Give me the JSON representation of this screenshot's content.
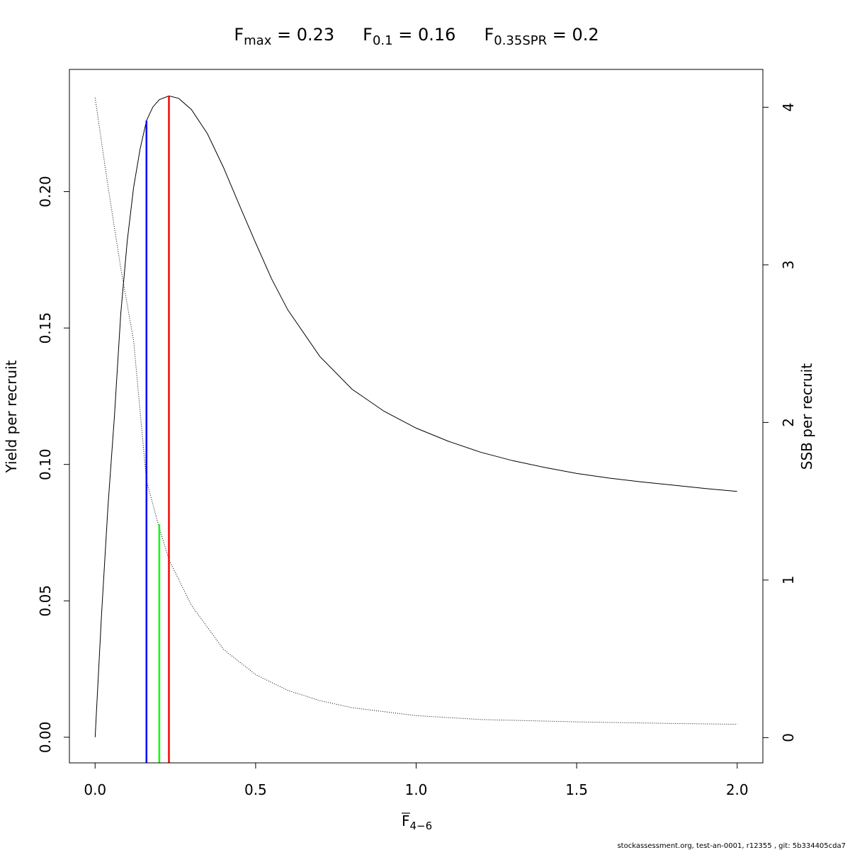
{
  "chart_data": {
    "type": "line",
    "title_parts": [
      {
        "main": "F",
        "sub": "max",
        "rest": " = 0.23"
      },
      {
        "main": "F",
        "sub": "0.1",
        "rest": " = 0.16"
      },
      {
        "main": "F",
        "sub": "0.35SPR",
        "rest": " = 0.2"
      }
    ],
    "xlabel": {
      "main": "F",
      "sub": "4−6"
    },
    "ylabel": "Yield per recruit",
    "ylabel_right": "SSB per recruit",
    "xlim": [
      -0.08,
      2.08
    ],
    "ylim": [
      -0.0094,
      0.2448
    ],
    "ylim_right": [
      -0.16,
      4.24
    ],
    "x_ticks": [
      0.0,
      0.5,
      1.0,
      1.5,
      2.0
    ],
    "x_tick_labels": [
      "0.0",
      "0.5",
      "1.0",
      "1.5",
      "2.0"
    ],
    "y_ticks": [
      0.0,
      0.05,
      0.1,
      0.15,
      0.2
    ],
    "y_tick_labels": [
      "0.00",
      "0.05",
      "0.10",
      "0.15",
      "0.20"
    ],
    "y2_ticks": [
      0,
      1,
      2,
      3,
      4
    ],
    "y2_tick_labels": [
      "0",
      "1",
      "2",
      "3",
      "4"
    ],
    "series": [
      {
        "axis": "left",
        "style": "solid",
        "color": "#000000",
        "points": [
          [
            0.0,
            0.0
          ],
          [
            0.02,
            0.0447
          ],
          [
            0.04,
            0.0845
          ],
          [
            0.06,
            0.1175
          ],
          [
            0.08,
            0.1553
          ],
          [
            0.1,
            0.1818
          ],
          [
            0.12,
            0.2015
          ],
          [
            0.14,
            0.2155
          ],
          [
            0.16,
            0.226
          ],
          [
            0.18,
            0.231
          ],
          [
            0.2,
            0.2337
          ],
          [
            0.23,
            0.2351
          ],
          [
            0.26,
            0.2342
          ],
          [
            0.3,
            0.2301
          ],
          [
            0.35,
            0.2212
          ],
          [
            0.4,
            0.2088
          ],
          [
            0.45,
            0.1949
          ],
          [
            0.5,
            0.1812
          ],
          [
            0.55,
            0.168
          ],
          [
            0.6,
            0.1567
          ],
          [
            0.7,
            0.1396
          ],
          [
            0.8,
            0.1276
          ],
          [
            0.9,
            0.1195
          ],
          [
            1.0,
            0.1133
          ],
          [
            1.1,
            0.1085
          ],
          [
            1.2,
            0.1045
          ],
          [
            1.3,
            0.1014
          ],
          [
            1.4,
            0.0989
          ],
          [
            1.5,
            0.0967
          ],
          [
            1.6,
            0.095
          ],
          [
            1.7,
            0.0936
          ],
          [
            1.8,
            0.0924
          ],
          [
            1.9,
            0.0912
          ],
          [
            2.0,
            0.0901
          ]
        ]
      },
      {
        "axis": "right",
        "style": "dotted",
        "color": "#000000",
        "points": [
          [
            0.0,
            4.06
          ],
          [
            0.04,
            3.5
          ],
          [
            0.08,
            2.98
          ],
          [
            0.12,
            2.52
          ],
          [
            0.16,
            1.63
          ],
          [
            0.2,
            1.33
          ],
          [
            0.23,
            1.13
          ],
          [
            0.3,
            0.84
          ],
          [
            0.4,
            0.56
          ],
          [
            0.5,
            0.4
          ],
          [
            0.6,
            0.3
          ],
          [
            0.7,
            0.235
          ],
          [
            0.8,
            0.19
          ],
          [
            1.0,
            0.14
          ],
          [
            1.2,
            0.115
          ],
          [
            1.5,
            0.1
          ],
          [
            1.8,
            0.09
          ],
          [
            2.0,
            0.085
          ]
        ]
      }
    ],
    "reference_lines": [
      {
        "name": "F0.1",
        "x": 0.16,
        "y_top": 0.226,
        "color": "#0000ff"
      },
      {
        "name": "F0.35SPR",
        "x": 0.2,
        "y_top": 0.078,
        "color": "#00ff00"
      },
      {
        "name": "Fmax",
        "x": 0.23,
        "y_top": 0.2351,
        "color": "#ff0000"
      }
    ],
    "grid": false,
    "legend": "none"
  },
  "footer": "stockassessment.org, test-an-0001, r12355 , git: 5b334405cda7"
}
